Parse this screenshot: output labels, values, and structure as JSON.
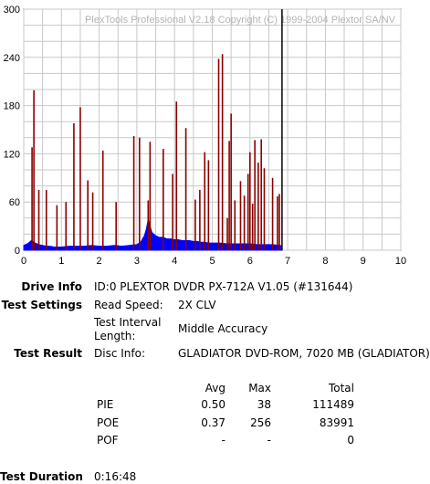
{
  "chart_data": {
    "type": "bar",
    "title": "PlexTools Professional V2.18 Copyright (C) 1999-2004 Plextor SA/NV",
    "xlim": [
      0,
      10
    ],
    "ylim": [
      0,
      300
    ],
    "x_ticks": [
      "0",
      "1",
      "2",
      "3",
      "4",
      "5",
      "6",
      "7",
      "8",
      "9",
      "10"
    ],
    "y_ticks": [
      "0",
      "60",
      "120",
      "180",
      "240",
      "300"
    ],
    "grid": true,
    "marker_x": 6.85,
    "series": [
      {
        "name": "POE",
        "color": "#8b0000",
        "x": [
          0.22,
          0.27,
          0.4,
          0.6,
          0.88,
          1.12,
          1.33,
          1.5,
          1.7,
          1.83,
          2.1,
          2.45,
          2.92,
          3.07,
          3.3,
          3.35,
          3.7,
          3.95,
          4.05,
          4.3,
          4.55,
          4.67,
          4.8,
          4.9,
          5.17,
          5.27,
          5.4,
          5.45,
          5.5,
          5.6,
          5.75,
          5.85,
          5.95,
          6.0,
          6.07,
          6.13,
          6.22,
          6.3,
          6.38,
          6.6,
          6.73,
          6.78
        ],
        "values": [
          128,
          199,
          75,
          75,
          56,
          60,
          158,
          178,
          87,
          72,
          124,
          60,
          142,
          140,
          62,
          135,
          126,
          95,
          185,
          152,
          63,
          75,
          122,
          112,
          238,
          244,
          40,
          136,
          170,
          62,
          86,
          68,
          95,
          122,
          58,
          137,
          109,
          138,
          102,
          90,
          67,
          70
        ]
      },
      {
        "name": "PIE",
        "color": "#0000ff",
        "values_note": "",
        "x": [
          0.0,
          0.1,
          0.2,
          0.3,
          0.4,
          0.5,
          0.6,
          0.7,
          0.8,
          0.9,
          1.0,
          1.2,
          1.4,
          1.6,
          1.8,
          2.0,
          2.2,
          2.4,
          2.6,
          2.8,
          3.0,
          3.1,
          3.2,
          3.25,
          3.3,
          3.35,
          3.4,
          3.5,
          3.6,
          3.7,
          3.8,
          3.9,
          4.0,
          4.1,
          4.2,
          4.3,
          4.4,
          4.5,
          4.6,
          4.7,
          4.8,
          4.9,
          5.0,
          5.2,
          5.4,
          5.6,
          5.8,
          6.0,
          6.2,
          6.4,
          6.6,
          6.8,
          6.85
        ],
        "values": [
          6,
          8,
          12,
          9,
          7,
          6,
          5,
          5,
          4,
          4,
          4,
          5,
          5,
          5,
          6,
          5,
          5,
          6,
          5,
          6,
          7,
          10,
          18,
          26,
          38,
          30,
          22,
          18,
          16,
          16,
          14,
          14,
          13,
          13,
          12,
          12,
          12,
          11,
          11,
          10,
          10,
          9,
          9,
          9,
          8,
          8,
          8,
          8,
          7,
          7,
          7,
          6,
          5
        ]
      }
    ]
  },
  "info": {
    "drive_label": "Drive Info",
    "drive_value": "ID:0 PLEXTOR DVDR PX-712A V1.05 (#131644)",
    "settings_label": "Test Settings",
    "read_speed_label": "Read Speed:",
    "read_speed_value": "2X CLV",
    "interval_label_1": "Test Interval",
    "interval_label_2": "Length:",
    "interval_value": "Middle Accuracy",
    "result_label": "Test Result",
    "disc_label": "Disc Info:",
    "disc_value": "GLADIATOR DVD-ROM, 7020 MB (GLADIATOR)",
    "duration_label": "Test Duration",
    "duration_value": "0:16:48"
  },
  "stats": {
    "headers": {
      "avg": "Avg",
      "max": "Max",
      "total": "Total"
    },
    "rows": [
      {
        "name": "PIE",
        "avg": "0.50",
        "max": "38",
        "total": "111489"
      },
      {
        "name": "POE",
        "avg": "0.37",
        "max": "256",
        "total": "83991"
      },
      {
        "name": "POF",
        "avg": "-",
        "max": "-",
        "total": "0"
      }
    ]
  }
}
